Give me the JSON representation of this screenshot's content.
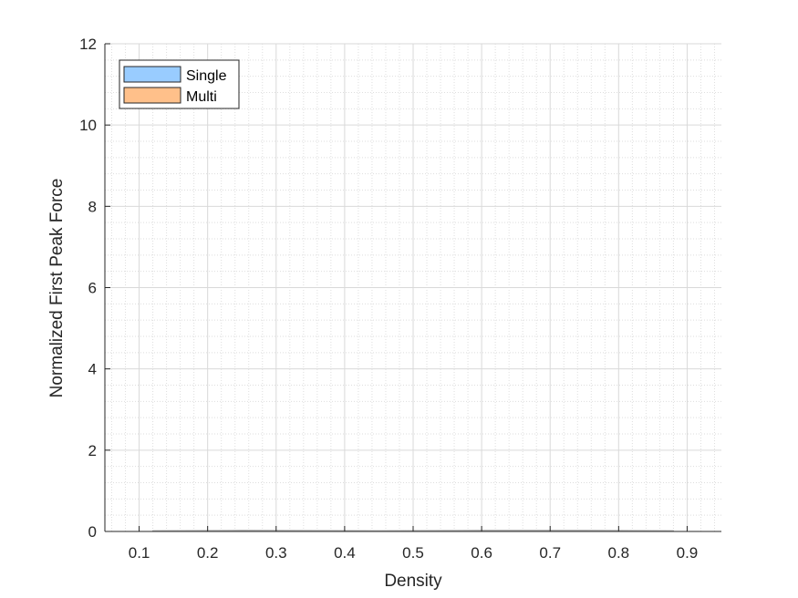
{
  "chart_data": {
    "type": "area",
    "title": "",
    "xlabel": "Density",
    "ylabel": "Normalized First Peak Force",
    "xlim": [
      0.05,
      0.95
    ],
    "ylim": [
      0,
      12
    ],
    "x_ticks": [
      0.1,
      0.2,
      0.3,
      0.4,
      0.5,
      0.6,
      0.7,
      0.8,
      0.9
    ],
    "x_tick_labels": [
      "0.1",
      "0.2",
      "0.3",
      "0.4",
      "0.5",
      "0.6",
      "0.7",
      "0.8",
      "0.9"
    ],
    "y_ticks": [
      0,
      2,
      4,
      6,
      8,
      10,
      12
    ],
    "y_tick_labels": [
      "0",
      "2",
      "4",
      "6",
      "8",
      "10",
      "12"
    ],
    "x_minor_step": 0.02,
    "y_minor_step": 0.4,
    "grid": true,
    "minor_grid": true,
    "legend_position": "top-left",
    "colors": {
      "axis": "#262626",
      "grid_major": "#d9d9d9",
      "grid_minor": "#dedede",
      "single": "#99ccff",
      "multi": "#ffc08a",
      "baseline": "#b0b0b0"
    },
    "series": [
      {
        "name": "Single",
        "color": "#99ccff",
        "values": [
          {
            "x": 0.12,
            "y": 0.02
          },
          {
            "x": 0.25,
            "y": 0.03
          },
          {
            "x": 0.45,
            "y": 0.02
          },
          {
            "x": 0.6,
            "y": 0.03
          },
          {
            "x": 0.75,
            "y": 0.03
          },
          {
            "x": 0.88,
            "y": 0.02
          }
        ]
      },
      {
        "name": "Multi",
        "color": "#ffc08a",
        "values": [
          {
            "x": 0.12,
            "y": 0.01
          },
          {
            "x": 0.25,
            "y": 0.02
          },
          {
            "x": 0.45,
            "y": 0.01
          },
          {
            "x": 0.6,
            "y": 0.02
          },
          {
            "x": 0.75,
            "y": 0.02
          },
          {
            "x": 0.88,
            "y": 0.01
          }
        ]
      }
    ]
  }
}
